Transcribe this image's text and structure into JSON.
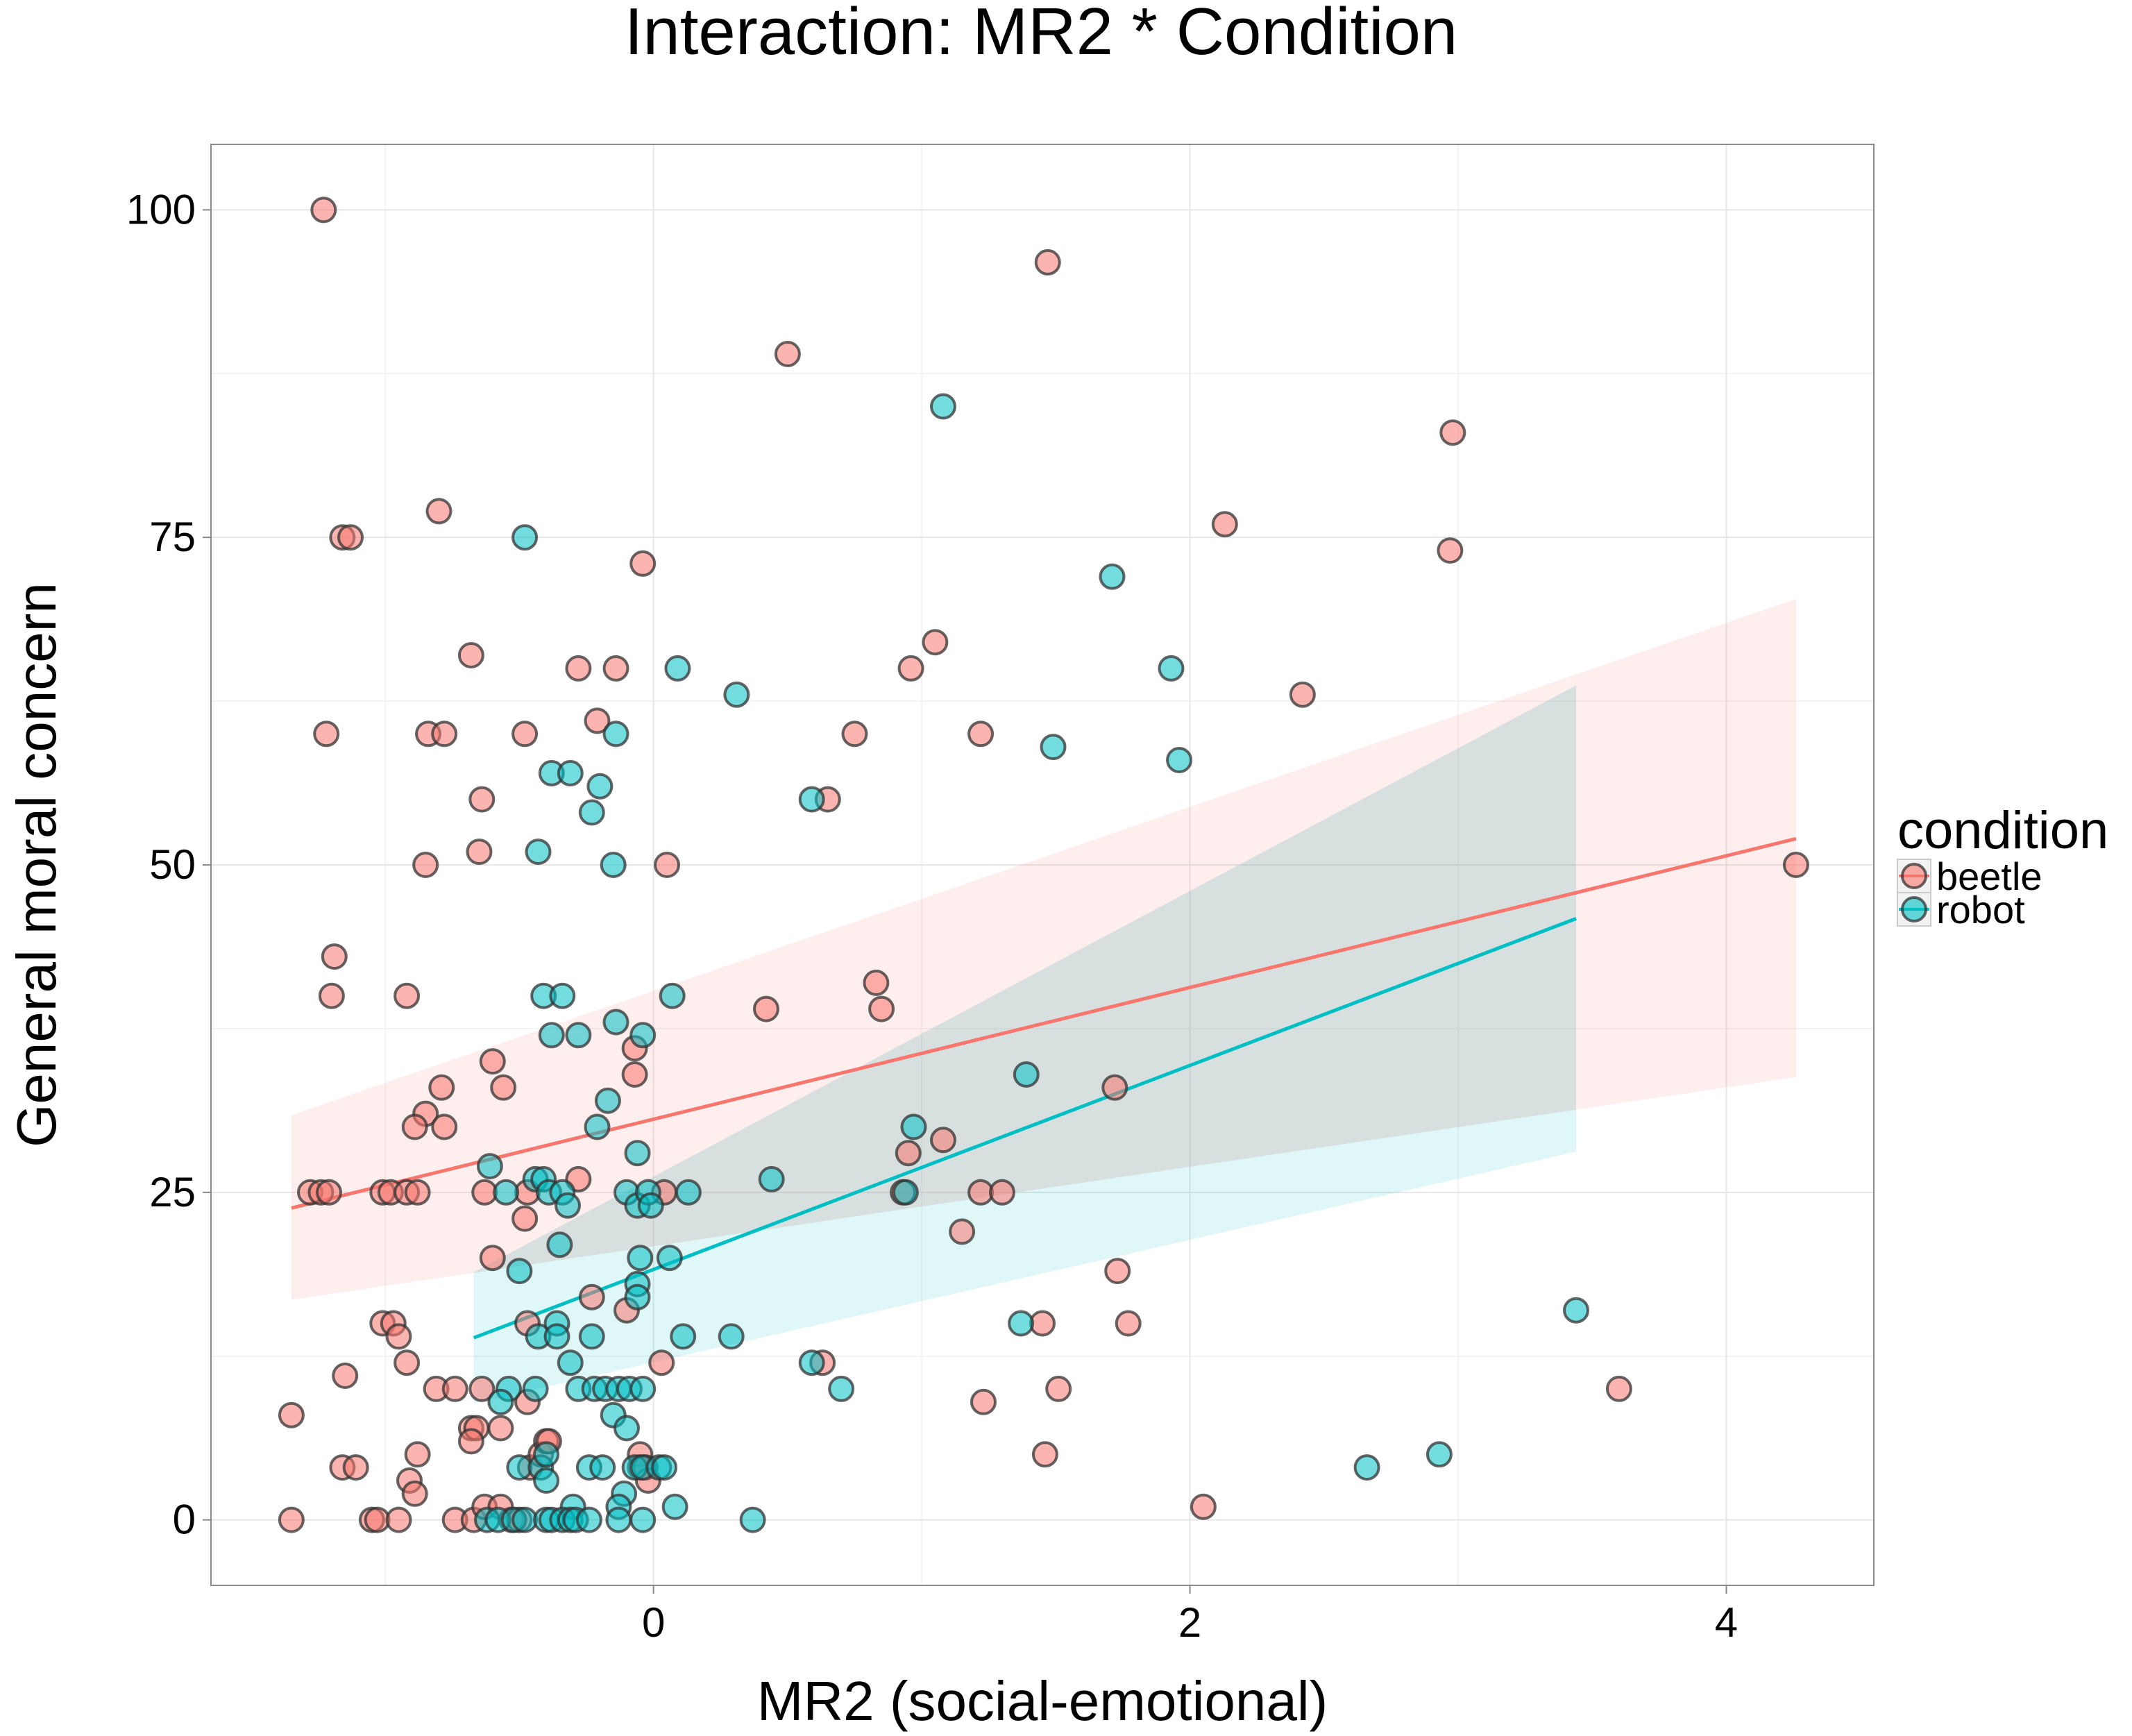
{
  "chart_data": {
    "type": "scatter",
    "title": "Interaction: MR2 * Condition",
    "xlabel": "MR2 (social-emotional)",
    "ylabel": "General moral concern",
    "xlim": [
      -1.65,
      4.55
    ],
    "ylim": [
      -5,
      105
    ],
    "x_ticks": [
      0,
      2,
      4
    ],
    "y_ticks": [
      0,
      25,
      50,
      75,
      100
    ],
    "x_tick_labels": [
      "0",
      "2",
      "4"
    ],
    "y_tick_labels": [
      "0",
      "25",
      "50",
      "75",
      "100"
    ],
    "grid": true,
    "legend": {
      "title": "condition",
      "position": "right",
      "entries": [
        "beetle",
        "robot"
      ]
    },
    "series": [
      {
        "name": "beetle",
        "color": "#F8766D",
        "points": [
          [
            -1.23,
            100
          ],
          [
            -1.16,
            75
          ],
          [
            -1.13,
            75
          ],
          [
            -0.8,
            77
          ],
          [
            -1.22,
            60
          ],
          [
            -0.68,
            66
          ],
          [
            -0.84,
            60
          ],
          [
            -0.78,
            60
          ],
          [
            -0.85,
            50
          ],
          [
            -1.19,
            43
          ],
          [
            -1.2,
            40
          ],
          [
            -0.92,
            40
          ],
          [
            -0.79,
            33
          ],
          [
            -0.85,
            31
          ],
          [
            -0.89,
            30
          ],
          [
            -0.78,
            30
          ],
          [
            -0.6,
            35
          ],
          [
            -0.56,
            33
          ],
          [
            -1.28,
            25
          ],
          [
            -1.24,
            25
          ],
          [
            -1.21,
            25
          ],
          [
            -1.01,
            25
          ],
          [
            -0.98,
            25
          ],
          [
            -0.92,
            25
          ],
          [
            -0.88,
            25
          ],
          [
            -0.64,
            55
          ],
          [
            -0.65,
            51
          ],
          [
            -0.48,
            60
          ],
          [
            -0.21,
            61
          ],
          [
            -0.28,
            65
          ],
          [
            -0.14,
            65
          ],
          [
            -0.04,
            73
          ],
          [
            0.05,
            50
          ],
          [
            -0.07,
            36
          ],
          [
            -0.07,
            34
          ],
          [
            -0.63,
            25
          ],
          [
            -0.48,
            23
          ],
          [
            -0.47,
            25
          ],
          [
            -0.28,
            26
          ],
          [
            -0.6,
            20
          ],
          [
            -0.23,
            17
          ],
          [
            -0.1,
            16
          ],
          [
            0.04,
            25
          ],
          [
            0.03,
            12
          ],
          [
            -1.01,
            15
          ],
          [
            -0.97,
            15
          ],
          [
            -0.95,
            14
          ],
          [
            -0.92,
            12
          ],
          [
            -1.15,
            11
          ],
          [
            -1.35,
            8
          ],
          [
            -0.81,
            10
          ],
          [
            -0.74,
            10
          ],
          [
            -0.64,
            10
          ],
          [
            -0.68,
            7
          ],
          [
            -0.66,
            7
          ],
          [
            -0.68,
            6
          ],
          [
            -0.57,
            7
          ],
          [
            -0.47,
            9
          ],
          [
            -0.47,
            15
          ],
          [
            -0.46,
            4
          ],
          [
            -0.42,
            5
          ],
          [
            -0.4,
            6
          ],
          [
            -0.39,
            6
          ],
          [
            -1.16,
            4
          ],
          [
            -1.11,
            4
          ],
          [
            -0.88,
            5
          ],
          [
            -0.91,
            3
          ],
          [
            -0.89,
            2
          ],
          [
            -1.35,
            0
          ],
          [
            -1.05,
            0
          ],
          [
            -1.03,
            0
          ],
          [
            -0.95,
            0
          ],
          [
            -0.74,
            0
          ],
          [
            -0.67,
            0
          ],
          [
            -0.63,
            1
          ],
          [
            -0.57,
            1
          ],
          [
            -0.53,
            0
          ],
          [
            -0.5,
            0
          ],
          [
            -0.05,
            5
          ],
          [
            -0.05,
            4
          ],
          [
            -0.03,
            4
          ],
          [
            -0.02,
            3
          ],
          [
            0.5,
            89
          ],
          [
            1.47,
            96
          ],
          [
            2.98,
            83
          ],
          [
            2.13,
            76
          ],
          [
            2.97,
            74
          ],
          [
            1.05,
            67
          ],
          [
            0.96,
            65
          ],
          [
            2.42,
            63
          ],
          [
            0.75,
            60
          ],
          [
            1.22,
            60
          ],
          [
            0.65,
            55
          ],
          [
            4.26,
            50
          ],
          [
            0.83,
            41
          ],
          [
            0.85,
            39
          ],
          [
            0.42,
            39
          ],
          [
            1.72,
            33
          ],
          [
            1.08,
            29
          ],
          [
            0.95,
            28
          ],
          [
            0.93,
            25
          ],
          [
            1.22,
            25
          ],
          [
            1.3,
            25
          ],
          [
            1.15,
            22
          ],
          [
            1.73,
            19
          ],
          [
            1.77,
            15
          ],
          [
            1.45,
            15
          ],
          [
            0.63,
            12
          ],
          [
            1.23,
            9
          ],
          [
            1.51,
            10
          ],
          [
            3.6,
            10
          ],
          [
            1.46,
            5
          ],
          [
            2.05,
            1
          ]
        ]
      },
      {
        "name": "robot",
        "color": "#00BFC4",
        "points": [
          [
            1.08,
            85
          ],
          [
            -0.48,
            75
          ],
          [
            1.71,
            72
          ],
          [
            1.93,
            65
          ],
          [
            0.09,
            65
          ],
          [
            0.31,
            63
          ],
          [
            1.49,
            59
          ],
          [
            1.96,
            58
          ],
          [
            -0.14,
            60
          ],
          [
            -0.38,
            57
          ],
          [
            -0.31,
            57
          ],
          [
            -0.2,
            56
          ],
          [
            -0.23,
            54
          ],
          [
            0.59,
            55
          ],
          [
            -0.43,
            51
          ],
          [
            -0.15,
            50
          ],
          [
            -0.41,
            40
          ],
          [
            -0.34,
            40
          ],
          [
            0.07,
            40
          ],
          [
            -0.14,
            38
          ],
          [
            -0.38,
            37
          ],
          [
            -0.28,
            37
          ],
          [
            -0.04,
            37
          ],
          [
            -0.17,
            32
          ],
          [
            -0.21,
            30
          ],
          [
            -0.06,
            28
          ],
          [
            1.39,
            34
          ],
          [
            0.97,
            30
          ],
          [
            -0.61,
            27
          ],
          [
            -0.55,
            25
          ],
          [
            -0.44,
            26
          ],
          [
            -0.41,
            26
          ],
          [
            -0.39,
            25
          ],
          [
            -0.34,
            25
          ],
          [
            -0.32,
            24
          ],
          [
            -0.1,
            25
          ],
          [
            -0.06,
            24
          ],
          [
            -0.02,
            25
          ],
          [
            -0.01,
            24
          ],
          [
            0.13,
            25
          ],
          [
            0.44,
            26
          ],
          [
            0.94,
            25
          ],
          [
            -0.5,
            19
          ],
          [
            -0.35,
            21
          ],
          [
            -0.05,
            20
          ],
          [
            -0.06,
            18
          ],
          [
            -0.06,
            17
          ],
          [
            0.06,
            20
          ],
          [
            -0.23,
            14
          ],
          [
            -0.43,
            14
          ],
          [
            -0.36,
            15
          ],
          [
            -0.36,
            14
          ],
          [
            0.11,
            14
          ],
          [
            0.29,
            14
          ],
          [
            1.37,
            15
          ],
          [
            3.44,
            16
          ],
          [
            -0.31,
            12
          ],
          [
            -0.54,
            10
          ],
          [
            -0.44,
            10
          ],
          [
            -0.28,
            10
          ],
          [
            -0.22,
            10
          ],
          [
            -0.18,
            10
          ],
          [
            -0.13,
            10
          ],
          [
            -0.09,
            10
          ],
          [
            -0.04,
            10
          ],
          [
            -0.57,
            9
          ],
          [
            0.59,
            12
          ],
          [
            0.7,
            10
          ],
          [
            -0.15,
            8
          ],
          [
            -0.1,
            7
          ],
          [
            -0.5,
            4
          ],
          [
            -0.42,
            4
          ],
          [
            -0.4,
            5
          ],
          [
            -0.4,
            3
          ],
          [
            -0.24,
            4
          ],
          [
            -0.19,
            4
          ],
          [
            -0.07,
            4
          ],
          [
            -0.04,
            4
          ],
          [
            0.02,
            4
          ],
          [
            0.04,
            4
          ],
          [
            -0.11,
            2
          ],
          [
            -0.13,
            1
          ],
          [
            0.08,
            1
          ],
          [
            -0.3,
            1
          ],
          [
            -0.62,
            0
          ],
          [
            -0.58,
            0
          ],
          [
            -0.52,
            0
          ],
          [
            -0.48,
            0
          ],
          [
            -0.4,
            0
          ],
          [
            -0.38,
            0
          ],
          [
            -0.34,
            0
          ],
          [
            -0.31,
            0
          ],
          [
            -0.29,
            0
          ],
          [
            -0.24,
            0
          ],
          [
            -0.13,
            0
          ],
          [
            -0.04,
            0
          ],
          [
            0.37,
            0
          ],
          [
            2.66,
            4
          ],
          [
            2.93,
            5
          ]
        ]
      }
    ],
    "fits": [
      {
        "series": "beetle",
        "x": [
          -1.35,
          4.26
        ],
        "y": [
          23.8,
          52.0
        ],
        "ci_lower": [
          16.8,
          33.8
        ],
        "ci_upper": [
          30.9,
          70.3
        ]
      },
      {
        "series": "robot",
        "x": [
          -0.67,
          3.44
        ],
        "y": [
          13.9,
          45.9
        ],
        "ci_lower": [
          8.9,
          28.1
        ],
        "ci_upper": [
          18.9,
          63.7
        ]
      }
    ]
  }
}
